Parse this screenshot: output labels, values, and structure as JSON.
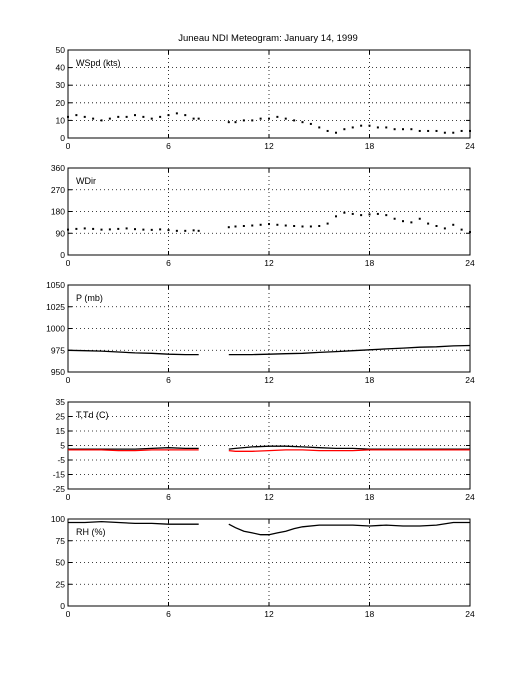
{
  "title": "Juneau NDI Meteogram:    January 14, 1999",
  "chart_data": [
    {
      "type": "scatter",
      "label": "WSpd (kts)",
      "ylim": [
        0,
        50
      ],
      "yticks": [
        0,
        10,
        20,
        30,
        40,
        50
      ],
      "xlim": [
        0,
        24
      ],
      "xticks": [
        0,
        6,
        12,
        18,
        24
      ],
      "grid": true,
      "series": [
        {
          "color": "#000000",
          "segments": [
            {
              "x": [
                0,
                0.5,
                1,
                1.5,
                2,
                2.5,
                3,
                3.5,
                4,
                4.5,
                5,
                5.5,
                6,
                6.5,
                7,
                7.5,
                7.8
              ],
              "y": [
                12,
                13,
                12,
                11,
                10,
                11,
                12,
                12,
                13,
                12,
                11,
                12,
                13,
                14,
                13,
                11,
                11
              ]
            },
            {
              "x": [
                9.6,
                10,
                10.5,
                11,
                11.5,
                12,
                12.5,
                13,
                13.5,
                14,
                14.5,
                15,
                15.5,
                16,
                16.5,
                17,
                17.5,
                18,
                18.5,
                19,
                19.5,
                20,
                20.5,
                21,
                21.5,
                22,
                22.5,
                23,
                23.5,
                24
              ],
              "y": [
                9,
                9,
                10,
                10,
                11,
                11,
                12,
                11,
                10,
                9,
                8,
                6,
                4,
                3,
                5,
                6,
                7,
                7,
                6,
                6,
                5,
                5,
                5,
                4,
                4,
                4,
                3,
                3,
                4,
                4
              ]
            }
          ]
        }
      ]
    },
    {
      "type": "scatter",
      "label": "WDir",
      "ylim": [
        0,
        360
      ],
      "yticks": [
        0,
        90,
        180,
        270,
        360
      ],
      "xlim": [
        0,
        24
      ],
      "xticks": [
        0,
        6,
        12,
        18,
        24
      ],
      "grid": true,
      "series": [
        {
          "color": "#000000",
          "segments": [
            {
              "x": [
                0,
                0.5,
                1,
                1.5,
                2,
                2.5,
                3,
                3.5,
                4,
                4.5,
                5,
                5.5,
                6,
                6.5,
                7,
                7.5,
                7.8
              ],
              "y": [
                105,
                108,
                110,
                108,
                105,
                106,
                108,
                110,
                107,
                105,
                104,
                106,
                103,
                100,
                100,
                102,
                100
              ]
            },
            {
              "x": [
                9.6,
                10,
                10.5,
                11,
                11.5,
                12,
                12.5,
                13,
                13.5,
                14,
                14.5,
                15,
                15.5,
                16,
                16.5,
                17,
                17.5,
                18,
                18.5,
                19,
                19.5,
                20,
                20.5,
                21,
                21.5,
                22,
                22.5,
                23,
                23.5,
                24
              ],
              "y": [
                115,
                118,
                120,
                122,
                125,
                128,
                125,
                122,
                120,
                118,
                118,
                120,
                130,
                160,
                175,
                170,
                165,
                168,
                170,
                165,
                150,
                140,
                135,
                150,
                130,
                120,
                110,
                125,
                105,
                95
              ]
            }
          ]
        }
      ]
    },
    {
      "type": "line",
      "label": "P (mb)",
      "ylim": [
        950,
        1050
      ],
      "yticks": [
        950,
        975,
        1000,
        1025,
        1050
      ],
      "xlim": [
        0,
        24
      ],
      "xticks": [
        0,
        6,
        12,
        18,
        24
      ],
      "grid": true,
      "series": [
        {
          "color": "#000000",
          "segments": [
            {
              "x": [
                0,
                1,
                2,
                3,
                4,
                5,
                6,
                7,
                7.8
              ],
              "y": [
                975,
                974.5,
                974,
                973,
                972,
                971.5,
                970.5,
                970,
                970
              ]
            },
            {
              "x": [
                9.6,
                10,
                11,
                12,
                13,
                14,
                15,
                16,
                17,
                18,
                19,
                20,
                21,
                22,
                23,
                24
              ],
              "y": [
                970,
                970,
                970,
                970.5,
                971,
                971.5,
                972.5,
                973.5,
                974.5,
                975.5,
                976.5,
                977.5,
                978.5,
                979,
                980,
                980.5
              ]
            }
          ]
        }
      ]
    },
    {
      "type": "line",
      "label": "T,Td (C)",
      "ylim": [
        -25,
        35
      ],
      "yticks": [
        -25,
        -15,
        -5,
        5,
        15,
        25,
        35
      ],
      "xlim": [
        0,
        24
      ],
      "xticks": [
        0,
        6,
        12,
        18,
        24
      ],
      "grid": true,
      "series": [
        {
          "color": "#000000",
          "segments": [
            {
              "x": [
                0,
                1,
                2,
                3,
                4,
                5,
                6,
                7,
                7.8
              ],
              "y": [
                2.5,
                2.5,
                2.5,
                2.5,
                2.5,
                3,
                3.5,
                3,
                3
              ]
            },
            {
              "x": [
                9.6,
                10,
                11,
                12,
                13,
                14,
                15,
                16,
                17,
                18,
                19,
                20,
                21,
                22,
                23,
                24
              ],
              "y": [
                2.5,
                3,
                4,
                4.5,
                4.5,
                4,
                3.5,
                3,
                3,
                2.5,
                2.5,
                2.5,
                2.5,
                2.5,
                2.5,
                2.5
              ]
            }
          ]
        },
        {
          "color": "#ff0000",
          "segments": [
            {
              "x": [
                0,
                1,
                2,
                3,
                4,
                5,
                6,
                7,
                7.8
              ],
              "y": [
                2,
                2,
                2,
                1.5,
                1.5,
                2,
                2,
                2,
                2
              ]
            },
            {
              "x": [
                9.6,
                10,
                11,
                12,
                13,
                14,
                15,
                16,
                17,
                18,
                19,
                20,
                21,
                22,
                23,
                24
              ],
              "y": [
                1.5,
                1,
                1,
                1.5,
                2,
                2,
                1.5,
                1.5,
                1.5,
                2,
                2,
                2,
                2,
                2,
                2,
                2
              ]
            }
          ]
        }
      ]
    },
    {
      "type": "line",
      "label": "RH (%)",
      "ylim": [
        0,
        100
      ],
      "yticks": [
        0,
        25,
        50,
        75,
        100
      ],
      "xlim": [
        0,
        24
      ],
      "xticks": [
        0,
        6,
        12,
        18,
        24
      ],
      "grid": true,
      "series": [
        {
          "color": "#000000",
          "segments": [
            {
              "x": [
                0,
                1,
                2,
                3,
                4,
                5,
                6,
                7,
                7.8
              ],
              "y": [
                96,
                96,
                97,
                96,
                95,
                95,
                94,
                94,
                94
              ]
            },
            {
              "x": [
                9.6,
                10,
                10.5,
                11,
                11.5,
                12,
                12.5,
                13,
                13.5,
                14,
                15,
                16,
                17,
                18,
                19,
                20,
                21,
                22,
                23,
                24
              ],
              "y": [
                94,
                90,
                86,
                84,
                82,
                82,
                84,
                86,
                89,
                91,
                93,
                93,
                93,
                92,
                93,
                92,
                92,
                93,
                96,
                96
              ]
            }
          ]
        }
      ]
    }
  ]
}
